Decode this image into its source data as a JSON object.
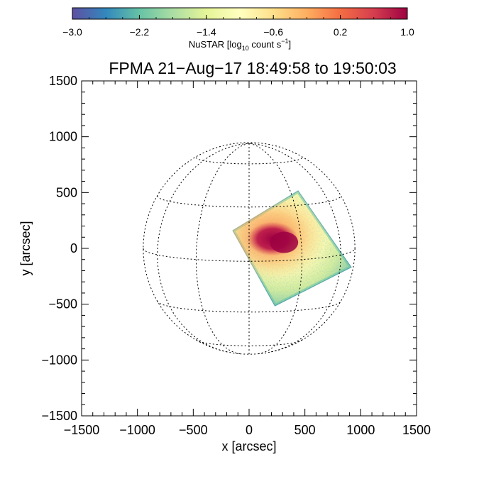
{
  "chart_data": {
    "type": "heatmap",
    "title": "FPMA 21−Aug−17 18:49:58 to 19:50:03",
    "xlabel": "x [arcsec]",
    "ylabel": "y [arcsec]",
    "xlim": [
      -1500,
      1500
    ],
    "ylim": [
      -1500,
      1500
    ],
    "x_ticks": [
      -1500,
      -1000,
      -500,
      0,
      500,
      1000,
      1500
    ],
    "y_ticks": [
      -1500,
      -1000,
      -500,
      0,
      500,
      1000,
      1500
    ],
    "x_tick_labels": [
      "−1500",
      "−1000",
      "−500",
      "0",
      "500",
      "1000",
      "1500"
    ],
    "y_tick_labels": [
      "−1500",
      "−1000",
      "−500",
      "0",
      "500",
      "1000",
      "1500"
    ],
    "solar_radius_arcsec": 948,
    "grid_latitudes_deg": [
      -60,
      -30,
      0,
      30,
      60
    ],
    "grid_longitudes_deg": [
      -60,
      -30,
      0,
      30,
      60
    ],
    "b0_deg": 7,
    "fov_corners_arcsec": [
      [
        -150,
        160
      ],
      [
        440,
        520
      ],
      [
        920,
        -170
      ],
      [
        230,
        -520
      ]
    ],
    "source_peak_arcsec": [
      300,
      60
    ],
    "colorbar": {
      "label_main": "NuSTAR [log",
      "label_sub": "10",
      "label_rest": " count s",
      "label_sup": "−1",
      "label_end": "]",
      "range": [
        -3.0,
        1.0
      ],
      "ticks": [
        -3.0,
        -2.2,
        -1.4,
        -0.6,
        0.2,
        1.0
      ],
      "tick_labels": [
        "−3.0",
        "−2.2",
        "−1.4",
        "−0.6",
        "0.2",
        "1.0"
      ],
      "colormap": [
        "#5e4fa2",
        "#3288bd",
        "#66c2a5",
        "#abdda4",
        "#e6f598",
        "#ffffbf",
        "#fee08b",
        "#fdae61",
        "#f46d43",
        "#d53e4f",
        "#9e0142"
      ]
    }
  }
}
